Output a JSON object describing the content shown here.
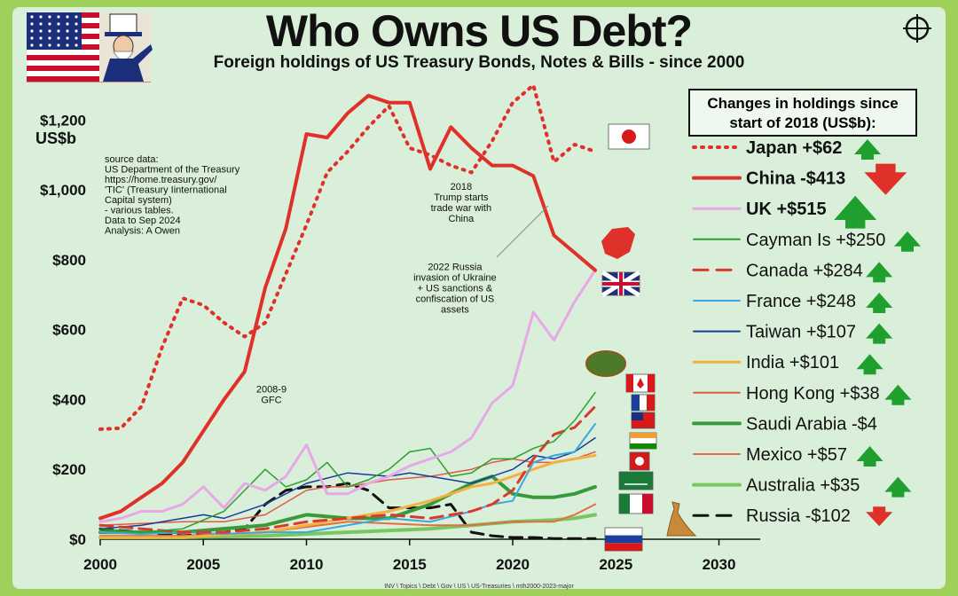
{
  "title": "Who Owns US Debt?",
  "subtitle": "Foreign holdings of US Treasury Bonds, Notes & Bills - since 2000",
  "footer": "INV \\ Topics \\ Debt \\ Gov \\ US \\ US-Treasuries \\ mth2000-2023-major",
  "source_note": [
    "source data:",
    "US Department of the Treasury",
    "https://home.treasury.gov/",
    "'TIC' (Treasury Iinternational",
    "Capital system)",
    "- various tables.",
    "Data to Sep 2024",
    "Analysis: A Owen"
  ],
  "legend_title": [
    "Changes in holdings since",
    "start of 2018 (US$b):"
  ],
  "annotations": [
    {
      "lines": [
        "2008-9",
        "GFC"
      ],
      "x": 2008.3,
      "y": 420
    },
    {
      "lines": [
        "2018",
        "Trump starts",
        "trade war with",
        "China"
      ],
      "x": 2017.5,
      "y": 1000
    },
    {
      "lines": [
        "2022 Russia",
        "invasion of Ukraine",
        "+ US sanctions &",
        "confiscation of US",
        "assets"
      ],
      "x": 2017.2,
      "y": 770
    }
  ],
  "chart_data": {
    "type": "line",
    "title": "Who Owns US Debt?",
    "subtitle": "Foreign holdings of US Treasury Bonds, Notes & Bills - since 2000",
    "ylabel": "US$b",
    "xlim": [
      2000,
      2032
    ],
    "ylim": [
      0,
      1300
    ],
    "x_ticks": [
      2000,
      2005,
      2010,
      2015,
      2020,
      2025,
      2030
    ],
    "y_ticks": [
      0,
      200,
      400,
      600,
      800,
      1000,
      1200
    ],
    "y_tick_labels": [
      "$0",
      "$200",
      "$400",
      "$600",
      "$800",
      "$1,000",
      "$1,200"
    ],
    "grid": false,
    "legend_position": "right",
    "series": [
      {
        "name": "Japan",
        "change": "+$62",
        "direction": "up",
        "color": "#e0302a",
        "style": "dotted",
        "width": 4,
        "bold": true,
        "x": [
          2000,
          2001,
          2002,
          2003,
          2004,
          2005,
          2006,
          2007,
          2008,
          2009,
          2010,
          2011,
          2012,
          2013,
          2014,
          2015,
          2016,
          2017,
          2018,
          2019,
          2020,
          2021,
          2022,
          2023,
          2024
        ],
        "y": [
          315,
          318,
          380,
          550,
          690,
          670,
          620,
          580,
          620,
          760,
          900,
          1050,
          1110,
          1180,
          1240,
          1120,
          1100,
          1070,
          1050,
          1140,
          1250,
          1300,
          1080,
          1130,
          1110
        ]
      },
      {
        "name": "China",
        "change": "-$413",
        "direction": "down",
        "color": "#e0302a",
        "style": "solid",
        "width": 4,
        "bold": true,
        "highlight": true,
        "x": [
          2000,
          2001,
          2002,
          2003,
          2004,
          2005,
          2006,
          2007,
          2008,
          2009,
          2010,
          2011,
          2012,
          2013,
          2014,
          2015,
          2016,
          2017,
          2018,
          2019,
          2020,
          2021,
          2022,
          2023,
          2024
        ],
        "y": [
          60,
          80,
          120,
          160,
          220,
          310,
          400,
          480,
          720,
          890,
          1160,
          1150,
          1220,
          1270,
          1250,
          1250,
          1060,
          1180,
          1120,
          1070,
          1070,
          1040,
          870,
          820,
          770
        ]
      },
      {
        "name": "UK",
        "change": "+$515",
        "direction": "up",
        "color": "#e8a8e8",
        "style": "solid",
        "width": 3,
        "bold": true,
        "x": [
          2000,
          2001,
          2002,
          2003,
          2004,
          2005,
          2006,
          2007,
          2008,
          2009,
          2010,
          2011,
          2012,
          2013,
          2014,
          2015,
          2016,
          2017,
          2018,
          2019,
          2020,
          2021,
          2022,
          2023,
          2024
        ],
        "y": [
          50,
          60,
          80,
          80,
          100,
          150,
          90,
          160,
          140,
          180,
          270,
          130,
          130,
          160,
          180,
          210,
          230,
          250,
          290,
          390,
          440,
          650,
          570,
          680,
          770
        ]
      },
      {
        "name": "Cayman Is",
        "change": "+$250",
        "direction": "up",
        "color": "#2ca02c",
        "style": "solid",
        "width": 1.5,
        "bold": false,
        "x": [
          2000,
          2002,
          2004,
          2006,
          2007,
          2008,
          2009,
          2010,
          2011,
          2012,
          2013,
          2014,
          2015,
          2016,
          2017,
          2018,
          2019,
          2020,
          2021,
          2022,
          2023,
          2024
        ],
        "y": [
          30,
          20,
          30,
          80,
          140,
          200,
          150,
          170,
          220,
          150,
          170,
          200,
          250,
          260,
          180,
          190,
          230,
          230,
          260,
          280,
          340,
          420
        ]
      },
      {
        "name": "Canada",
        "change": "+$284",
        "direction": "up",
        "color": "#d93a2c",
        "style": "dashed",
        "width": 3,
        "bold": false,
        "x": [
          2000,
          2002,
          2004,
          2006,
          2008,
          2010,
          2012,
          2014,
          2016,
          2018,
          2019,
          2020,
          2021,
          2022,
          2023,
          2024
        ],
        "y": [
          40,
          30,
          20,
          20,
          30,
          50,
          60,
          70,
          60,
          80,
          100,
          140,
          230,
          300,
          320,
          380
        ]
      },
      {
        "name": "France",
        "change": "+$248",
        "direction": "up",
        "color": "#3aa8e0",
        "style": "solid",
        "width": 2,
        "bold": false,
        "x": [
          2000,
          2002,
          2004,
          2006,
          2008,
          2010,
          2012,
          2014,
          2016,
          2018,
          2019,
          2020,
          2021,
          2022,
          2023,
          2024
        ],
        "y": [
          20,
          15,
          20,
          15,
          20,
          20,
          40,
          60,
          50,
          80,
          100,
          110,
          220,
          240,
          250,
          330
        ]
      },
      {
        "name": "Taiwan",
        "change": "+$107",
        "direction": "up",
        "color": "#1a3a9c",
        "style": "solid",
        "width": 1.5,
        "bold": false,
        "x": [
          2000,
          2002,
          2004,
          2005,
          2006,
          2008,
          2010,
          2012,
          2014,
          2015,
          2016,
          2017,
          2018,
          2019,
          2020,
          2021,
          2022,
          2023,
          2024
        ],
        "y": [
          30,
          40,
          60,
          70,
          60,
          100,
          160,
          190,
          180,
          190,
          180,
          170,
          160,
          180,
          200,
          240,
          230,
          250,
          290
        ]
      },
      {
        "name": "India",
        "change": "+$101",
        "direction": "up",
        "color": "#f5b041",
        "style": "solid",
        "width": 3,
        "bold": false,
        "x": [
          2000,
          2004,
          2008,
          2010,
          2012,
          2014,
          2016,
          2018,
          2019,
          2020,
          2021,
          2022,
          2023,
          2024
        ],
        "y": [
          5,
          5,
          20,
          40,
          60,
          80,
          110,
          150,
          160,
          180,
          200,
          220,
          230,
          240
        ]
      },
      {
        "name": "Hong Kong",
        "change": "+$38",
        "direction": "up",
        "color": "#e05a4a",
        "style": "solid",
        "width": 1.5,
        "bold": false,
        "x": [
          2000,
          2002,
          2004,
          2006,
          2008,
          2010,
          2011,
          2012,
          2014,
          2016,
          2018,
          2019,
          2020,
          2021,
          2022,
          2023,
          2024
        ],
        "y": [
          40,
          45,
          50,
          50,
          70,
          140,
          150,
          150,
          170,
          180,
          200,
          220,
          230,
          220,
          220,
          230,
          250
        ]
      },
      {
        "name": "Saudi Arabia",
        "change": "-$4",
        "direction": "none",
        "color": "#3a9a3a",
        "style": "solid",
        "width": 4,
        "bold": false,
        "x": [
          2000,
          2004,
          2008,
          2010,
          2012,
          2014,
          2016,
          2018,
          2019,
          2020,
          2021,
          2022,
          2023,
          2024
        ],
        "y": [
          20,
          20,
          40,
          70,
          60,
          60,
          100,
          160,
          180,
          130,
          120,
          120,
          130,
          150
        ]
      },
      {
        "name": "Mexico",
        "change": "+$57",
        "direction": "up",
        "color": "#e07040",
        "style": "solid",
        "width": 2,
        "bold": false,
        "x": [
          2000,
          2004,
          2008,
          2012,
          2016,
          2018,
          2020,
          2022,
          2023,
          2024
        ],
        "y": [
          10,
          10,
          20,
          50,
          40,
          40,
          50,
          50,
          70,
          100
        ]
      },
      {
        "name": "Australia",
        "change": "+$35",
        "direction": "up",
        "color": "#7ac760",
        "style": "solid",
        "width": 4,
        "bold": false,
        "x": [
          2000,
          2004,
          2008,
          2012,
          2016,
          2018,
          2020,
          2022,
          2023,
          2024
        ],
        "y": [
          5,
          5,
          10,
          20,
          30,
          40,
          50,
          55,
          60,
          70
        ]
      },
      {
        "name": "Russia",
        "change": "-$102",
        "direction": "down",
        "color": "#111111",
        "style": "dashed",
        "width": 3,
        "bold": false,
        "x": [
          2000,
          2004,
          2006,
          2007,
          2008,
          2009,
          2010,
          2011,
          2012,
          2013,
          2014,
          2015,
          2016,
          2017,
          2018,
          2019,
          2020,
          2021,
          2022,
          2023,
          2024
        ],
        "y": [
          30,
          10,
          20,
          30,
          100,
          140,
          150,
          150,
          160,
          140,
          90,
          90,
          90,
          100,
          20,
          10,
          5,
          5,
          2,
          2,
          2
        ]
      }
    ]
  }
}
